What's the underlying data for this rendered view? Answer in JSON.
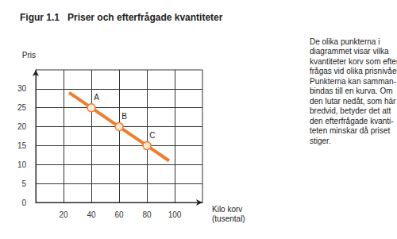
{
  "chart_data": {
    "type": "line",
    "figure_label": "Figur 1.1",
    "title": "Priser och efterfrågade kvantiteter",
    "y_label": "Pris",
    "x_label": "Kilo korv\n(tusental)",
    "x": [
      24,
      40,
      60,
      80,
      96
    ],
    "values": [
      29,
      25,
      20,
      15,
      11
    ],
    "point_labels": [
      null,
      "A",
      "B",
      "C",
      null
    ],
    "color": "#ef7d2d",
    "marker": "circle",
    "xlim": [
      0,
      120
    ],
    "xticks": [
      20,
      40,
      60,
      80,
      100
    ],
    "ylim": [
      0,
      35
    ],
    "yticks": [
      0,
      5,
      10,
      15,
      20,
      25,
      30
    ],
    "grid": true,
    "annotation": [
      "De olika punkterna i",
      "diagrammet visar vilka",
      "kvantiteter korv som efter-",
      "frågas vid olika prisnivåer.",
      "Punkterna kan samman-",
      "bindas till en kurva. Om",
      "den lutar nedåt, som här",
      "bredvid, betyder det att",
      "den efterfrågade kvanti-",
      "teten minskar då priset",
      "stiger."
    ]
  }
}
